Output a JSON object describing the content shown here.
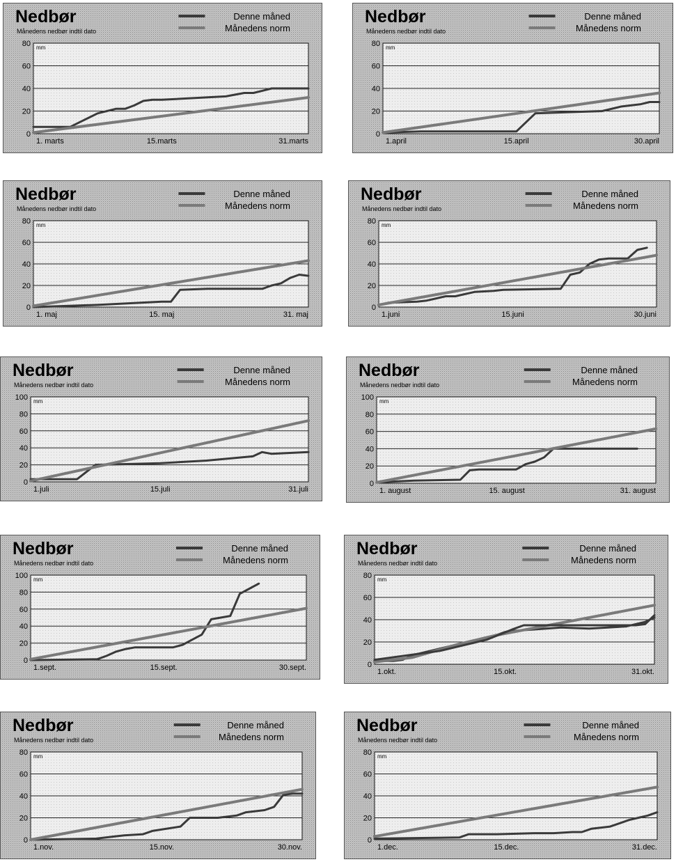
{
  "chart_data": [
    {
      "type": "line",
      "title": "Nedbør",
      "subtitle": "Månedens nedbør indtil dato",
      "ylabel": "mm",
      "ylim": [
        0,
        80
      ],
      "yticks": [
        0,
        20,
        40,
        60,
        80
      ],
      "xlim": [
        1,
        31
      ],
      "xticklabels": [
        {
          "x": 1,
          "label": "1. marts"
        },
        {
          "x": 15,
          "label": "15.marts"
        },
        {
          "x": 31,
          "label": "31.marts"
        }
      ],
      "series": [
        {
          "name": "Denne måned",
          "x": [
            1,
            4,
            5,
            6,
            8,
            10,
            11,
            12,
            13,
            14,
            15,
            22,
            24,
            25,
            26,
            27,
            29,
            31
          ],
          "values": [
            6,
            6,
            6,
            10,
            18,
            22,
            22,
            25,
            29,
            30,
            30,
            33,
            36,
            36,
            38,
            40,
            40,
            40
          ]
        },
        {
          "name": "Månedens norm",
          "x": [
            1,
            31
          ],
          "values": [
            1,
            32
          ]
        }
      ]
    },
    {
      "type": "line",
      "title": "Nedbør",
      "subtitle": "Månedens nedbør indtil dato",
      "ylabel": "mm",
      "ylim": [
        0,
        80
      ],
      "yticks": [
        0,
        20,
        40,
        60,
        80
      ],
      "xlim": [
        1,
        30
      ],
      "xticklabels": [
        {
          "x": 1,
          "label": "1.april"
        },
        {
          "x": 15,
          "label": "15.april"
        },
        {
          "x": 30,
          "label": "30.april"
        }
      ],
      "series": [
        {
          "name": "Denne måned",
          "x": [
            1,
            5,
            12,
            13,
            15,
            16,
            17,
            24,
            26,
            27,
            28,
            29,
            30
          ],
          "values": [
            1,
            2,
            2,
            2,
            2,
            10,
            18,
            20,
            24,
            25,
            26,
            28,
            28
          ]
        },
        {
          "name": "Månedens norm",
          "x": [
            1,
            30
          ],
          "values": [
            1,
            36
          ]
        }
      ]
    },
    {
      "type": "line",
      "title": "Nedbør",
      "subtitle": "Månedens nedbør indtil dato",
      "ylabel": "mm",
      "ylim": [
        0,
        80
      ],
      "yticks": [
        0,
        20,
        40,
        60,
        80
      ],
      "xlim": [
        1,
        31
      ],
      "xticklabels": [
        {
          "x": 1,
          "label": "1. maj"
        },
        {
          "x": 15,
          "label": "15. maj"
        },
        {
          "x": 31,
          "label": "31. maj"
        }
      ],
      "series": [
        {
          "name": "Denne måned",
          "x": [
            1,
            8,
            15,
            16,
            17,
            20,
            22,
            23,
            26,
            27,
            28,
            29,
            30,
            31
          ],
          "values": [
            0,
            2,
            5,
            5,
            16,
            17,
            17,
            17,
            17,
            20,
            22,
            27,
            30,
            29
          ]
        },
        {
          "name": "Månedens norm",
          "x": [
            1,
            31
          ],
          "values": [
            1,
            43
          ]
        }
      ]
    },
    {
      "type": "line",
      "title": "Nedbør",
      "subtitle": "Månedens nedbør indtil dato",
      "ylabel": "mm",
      "ylim": [
        0,
        80
      ],
      "yticks": [
        0,
        20,
        40,
        60,
        80
      ],
      "xlim": [
        1,
        30
      ],
      "xticklabels": [
        {
          "x": 1,
          "label": "1.juni"
        },
        {
          "x": 15,
          "label": "15.juni"
        },
        {
          "x": 30,
          "label": "30.juni"
        }
      ],
      "series": [
        {
          "name": "Denne måned",
          "x": [
            1,
            2,
            5,
            6,
            7,
            8,
            9,
            10,
            11,
            13,
            14,
            20,
            21,
            22,
            23,
            24,
            25,
            26,
            27,
            28,
            29
          ],
          "values": [
            2,
            4,
            5,
            6,
            8,
            10,
            10,
            12,
            14,
            15,
            16,
            17,
            30,
            32,
            40,
            44,
            45,
            45,
            45,
            53,
            55
          ]
        },
        {
          "name": "Månedens norm",
          "x": [
            1,
            30
          ],
          "values": [
            2,
            48
          ]
        }
      ]
    },
    {
      "type": "line",
      "title": "Nedbør",
      "subtitle": "Månedens nedbør indtil dato",
      "ylabel": "mm",
      "ylim": [
        0,
        100
      ],
      "yticks": [
        0,
        20,
        40,
        60,
        80,
        100
      ],
      "xlim": [
        1,
        31
      ],
      "xticklabels": [
        {
          "x": 1,
          "label": "1.juli"
        },
        {
          "x": 15,
          "label": "15.juli"
        },
        {
          "x": 31,
          "label": "31.juli"
        }
      ],
      "series": [
        {
          "name": "Denne måned",
          "x": [
            1,
            5,
            6,
            8,
            15,
            20,
            25,
            26,
            27,
            31
          ],
          "values": [
            3,
            3,
            3,
            20,
            22,
            25,
            30,
            35,
            33,
            35
          ]
        },
        {
          "name": "Månedens norm",
          "x": [
            1,
            31
          ],
          "values": [
            1,
            72
          ]
        }
      ]
    },
    {
      "type": "line",
      "title": "Nedbør",
      "subtitle": "Månedens nedbør indtil dato",
      "ylabel": "mm",
      "ylim": [
        0,
        100
      ],
      "yticks": [
        0,
        20,
        40,
        60,
        80,
        100
      ],
      "xlim": [
        1,
        31
      ],
      "xticklabels": [
        {
          "x": 1,
          "label": "1. august"
        },
        {
          "x": 15,
          "label": "15. august"
        },
        {
          "x": 31,
          "label": "31. august"
        }
      ],
      "series": [
        {
          "name": "Denne måned",
          "x": [
            1,
            5,
            10,
            11,
            12,
            14,
            15,
            16,
            17,
            18,
            19,
            20,
            25,
            29
          ],
          "values": [
            1,
            3,
            4,
            15,
            16,
            16,
            16,
            16,
            22,
            25,
            30,
            40,
            40,
            40
          ]
        },
        {
          "name": "Månedens norm",
          "x": [
            1,
            31
          ],
          "values": [
            1,
            63
          ]
        }
      ]
    },
    {
      "type": "line",
      "title": "Nedbør",
      "subtitle": "Månedens nedbør indtil dato",
      "ylabel": "mm",
      "ylim": [
        0,
        100
      ],
      "yticks": [
        0,
        20,
        40,
        60,
        80,
        100
      ],
      "xlim": [
        1,
        30
      ],
      "xticklabels": [
        {
          "x": 1,
          "label": "1.sept."
        },
        {
          "x": 15,
          "label": "15.sept."
        },
        {
          "x": 30,
          "label": "30.sept."
        }
      ],
      "series": [
        {
          "name": "Denne måned",
          "x": [
            1,
            8,
            9,
            10,
            11,
            12,
            13,
            15,
            16,
            17,
            18,
            19,
            20,
            21,
            22,
            23,
            24,
            25
          ],
          "values": [
            0,
            1,
            5,
            10,
            13,
            15,
            15,
            15,
            15,
            18,
            24,
            30,
            48,
            50,
            52,
            78,
            84,
            90
          ]
        },
        {
          "name": "Månedens norm",
          "x": [
            1,
            30
          ],
          "values": [
            1,
            61
          ]
        }
      ]
    },
    {
      "type": "line",
      "title": "Nedbør",
      "subtitle": "Månedens nedbør indtil dato",
      "ylabel": "mm",
      "ylim": [
        0,
        80
      ],
      "yticks": [
        0,
        20,
        40,
        60,
        80
      ],
      "xlim": [
        1,
        31
      ],
      "xticklabels": [
        {
          "x": 1,
          "label": "1.okt."
        },
        {
          "x": 15,
          "label": "15.okt."
        },
        {
          "x": 31,
          "label": "31.okt."
        }
      ],
      "series": [
        {
          "name": "Denne måned",
          "x": [
            1,
            3,
            4,
            5,
            6,
            8,
            10,
            11,
            12,
            13,
            14,
            15,
            16,
            21,
            24,
            26,
            28,
            30,
            31
          ],
          "values": [
            3,
            3,
            4,
            8,
            10,
            14,
            18,
            19,
            22,
            22,
            26,
            29,
            30,
            33,
            32,
            33,
            34,
            38,
            42
          ]
        },
        {
          "name": "Månedens norm",
          "x": [
            1,
            5,
            10,
            14,
            31
          ],
          "values": [
            2,
            6,
            18,
            26,
            53
          ]
        },
        {
          "name": "",
          "x": [
            1,
            8,
            10,
            12,
            13,
            16,
            17,
            19,
            29,
            30,
            31
          ],
          "values": [
            4,
            12,
            16,
            20,
            22,
            32,
            35,
            35,
            35,
            36,
            44
          ]
        }
      ]
    },
    {
      "type": "line",
      "title": "Nedbør",
      "subtitle": "Månedens nedbør indtil dato",
      "ylabel": "mm",
      "ylim": [
        0,
        80
      ],
      "yticks": [
        0,
        20,
        40,
        60,
        80
      ],
      "xlim": [
        1,
        30
      ],
      "xticklabels": [
        {
          "x": 1,
          "label": "1.nov."
        },
        {
          "x": 15,
          "label": "15.nov."
        },
        {
          "x": 30,
          "label": "30.nov."
        }
      ],
      "series": [
        {
          "name": "Denne måned",
          "x": [
            1,
            8,
            10,
            11,
            13,
            14,
            17,
            18,
            19,
            21,
            23,
            24,
            26,
            27,
            28,
            29,
            30
          ],
          "values": [
            0,
            1,
            3,
            4,
            5,
            8,
            12,
            20,
            20,
            20,
            22,
            25,
            27,
            30,
            41,
            42,
            42
          ]
        },
        {
          "name": "Månedens norm",
          "x": [
            1,
            30
          ],
          "values": [
            0,
            46
          ]
        }
      ]
    },
    {
      "type": "line",
      "title": "Nedbør",
      "subtitle": "Månedens nedbør indtil dato",
      "ylabel": "mm",
      "ylim": [
        0,
        80
      ],
      "yticks": [
        0,
        20,
        40,
        60,
        80
      ],
      "xlim": [
        1,
        31
      ],
      "xticklabels": [
        {
          "x": 1,
          "label": "1.dec."
        },
        {
          "x": 15,
          "label": "15.dec."
        },
        {
          "x": 31,
          "label": "31.dec."
        }
      ],
      "series": [
        {
          "name": "Denne måned",
          "x": [
            1,
            10,
            11,
            14,
            18,
            20,
            22,
            23,
            24,
            26,
            27,
            28,
            29,
            30,
            31
          ],
          "values": [
            1,
            2,
            5,
            5,
            6,
            6,
            7,
            7,
            10,
            12,
            15,
            18,
            20,
            22,
            25
          ]
        },
        {
          "name": "Månedens norm",
          "x": [
            1,
            31
          ],
          "values": [
            3,
            48
          ]
        }
      ]
    }
  ],
  "colors": {
    "panel_bg": "#bfbfbf",
    "plot_bg": "#ededed",
    "grid": "#222222",
    "series_actual": "#3a3a3a",
    "series_norm": "#7a7a7a"
  }
}
